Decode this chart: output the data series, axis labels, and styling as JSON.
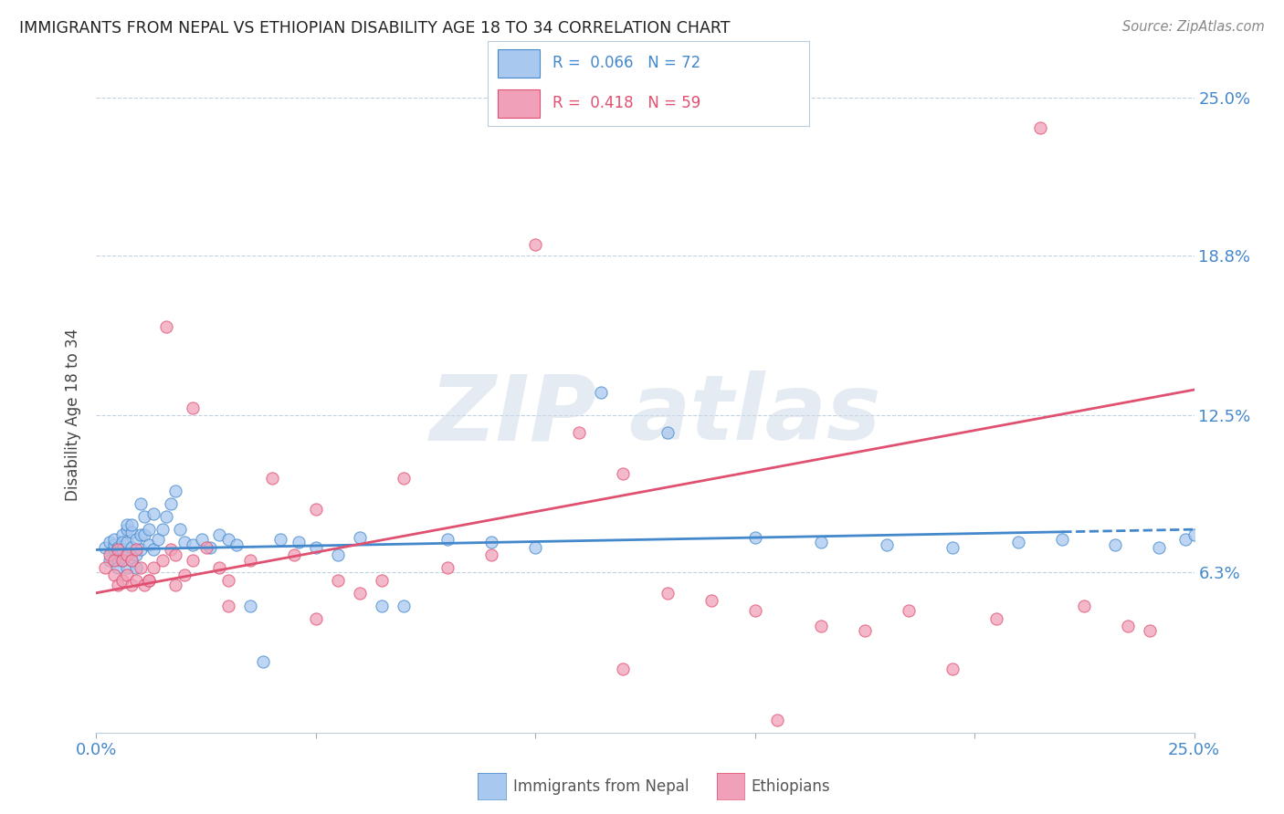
{
  "title": "IMMIGRANTS FROM NEPAL VS ETHIOPIAN DISABILITY AGE 18 TO 34 CORRELATION CHART",
  "source": "Source: ZipAtlas.com",
  "ylabel": "Disability Age 18 to 34",
  "xlim": [
    0.0,
    0.25
  ],
  "ylim": [
    0.0,
    0.25
  ],
  "ytick_positions": [
    0.063,
    0.125,
    0.188,
    0.25
  ],
  "ytick_labels": [
    "6.3%",
    "12.5%",
    "18.8%",
    "25.0%"
  ],
  "nepal_color": "#a8c8f0",
  "nepal_line_color": "#4488cc",
  "ethiopia_color": "#f0a0b8",
  "ethiopia_line_color": "#e05070",
  "nepal_R": 0.066,
  "nepal_N": 72,
  "ethiopia_R": 0.418,
  "ethiopia_N": 59,
  "legend_nepal_label": "Immigrants from Nepal",
  "legend_ethiopia_label": "Ethiopians",
  "nepal_scatter_x": [
    0.002,
    0.003,
    0.003,
    0.004,
    0.004,
    0.004,
    0.005,
    0.005,
    0.005,
    0.005,
    0.006,
    0.006,
    0.006,
    0.006,
    0.007,
    0.007,
    0.007,
    0.007,
    0.007,
    0.008,
    0.008,
    0.008,
    0.008,
    0.009,
    0.009,
    0.009,
    0.01,
    0.01,
    0.01,
    0.011,
    0.011,
    0.012,
    0.012,
    0.013,
    0.013,
    0.014,
    0.015,
    0.016,
    0.017,
    0.018,
    0.019,
    0.02,
    0.022,
    0.024,
    0.026,
    0.028,
    0.03,
    0.032,
    0.035,
    0.038,
    0.042,
    0.046,
    0.05,
    0.055,
    0.06,
    0.065,
    0.07,
    0.08,
    0.09,
    0.1,
    0.115,
    0.13,
    0.15,
    0.165,
    0.18,
    0.195,
    0.21,
    0.22,
    0.232,
    0.242,
    0.248,
    0.25
  ],
  "nepal_scatter_y": [
    0.073,
    0.075,
    0.068,
    0.072,
    0.074,
    0.076,
    0.073,
    0.071,
    0.068,
    0.065,
    0.078,
    0.075,
    0.072,
    0.068,
    0.08,
    0.075,
    0.07,
    0.065,
    0.082,
    0.079,
    0.073,
    0.068,
    0.082,
    0.076,
    0.07,
    0.065,
    0.078,
    0.072,
    0.09,
    0.085,
    0.078,
    0.074,
    0.08,
    0.072,
    0.086,
    0.076,
    0.08,
    0.085,
    0.09,
    0.095,
    0.08,
    0.075,
    0.074,
    0.076,
    0.073,
    0.078,
    0.076,
    0.074,
    0.05,
    0.028,
    0.076,
    0.075,
    0.073,
    0.07,
    0.077,
    0.05,
    0.05,
    0.076,
    0.075,
    0.073,
    0.134,
    0.118,
    0.077,
    0.075,
    0.074,
    0.073,
    0.075,
    0.076,
    0.074,
    0.073,
    0.076,
    0.078
  ],
  "ethiopia_scatter_x": [
    0.002,
    0.003,
    0.004,
    0.004,
    0.005,
    0.005,
    0.006,
    0.006,
    0.007,
    0.007,
    0.008,
    0.008,
    0.009,
    0.009,
    0.01,
    0.011,
    0.012,
    0.013,
    0.015,
    0.016,
    0.017,
    0.018,
    0.02,
    0.022,
    0.025,
    0.028,
    0.03,
    0.035,
    0.04,
    0.045,
    0.05,
    0.055,
    0.06,
    0.065,
    0.07,
    0.08,
    0.09,
    0.1,
    0.11,
    0.12,
    0.13,
    0.14,
    0.15,
    0.155,
    0.165,
    0.175,
    0.185,
    0.195,
    0.205,
    0.215,
    0.225,
    0.235,
    0.24,
    0.012,
    0.018,
    0.022,
    0.03,
    0.05,
    0.12
  ],
  "ethiopia_scatter_y": [
    0.065,
    0.07,
    0.062,
    0.068,
    0.058,
    0.072,
    0.06,
    0.068,
    0.062,
    0.07,
    0.058,
    0.068,
    0.06,
    0.072,
    0.065,
    0.058,
    0.06,
    0.065,
    0.068,
    0.16,
    0.072,
    0.07,
    0.062,
    0.128,
    0.073,
    0.065,
    0.06,
    0.068,
    0.1,
    0.07,
    0.088,
    0.06,
    0.055,
    0.06,
    0.1,
    0.065,
    0.07,
    0.192,
    0.118,
    0.102,
    0.055,
    0.052,
    0.048,
    0.005,
    0.042,
    0.04,
    0.048,
    0.025,
    0.045,
    0.238,
    0.05,
    0.042,
    0.04,
    0.06,
    0.058,
    0.068,
    0.05,
    0.045,
    0.025
  ],
  "nepal_line_start_x": 0.0,
  "nepal_line_end_solid_x": 0.22,
  "nepal_line_end_x": 0.25,
  "nepal_line_start_y": 0.072,
  "nepal_line_end_y": 0.08,
  "ethiopia_line_start_x": 0.0,
  "ethiopia_line_end_x": 0.25,
  "ethiopia_line_start_y": 0.055,
  "ethiopia_line_end_y": 0.135
}
